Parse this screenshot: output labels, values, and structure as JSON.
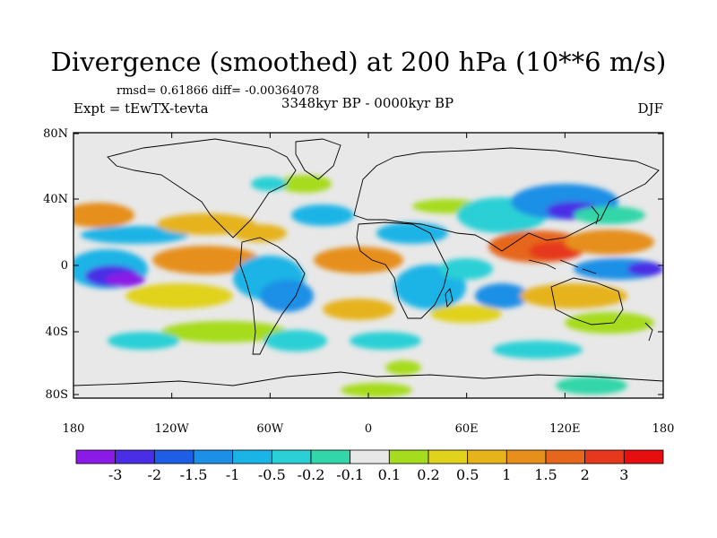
{
  "title": "Divergence (smoothed) at 200 hPa (10**6 m/s)",
  "stats": "rmsd= 0.61866 diff= -0.00364078",
  "period": "3348kyr BP - 0000kyr BP",
  "experiment": "Expt = tEwTX-tevta",
  "season": "DJF",
  "axes": {
    "x_ticks": [
      "180",
      "120W",
      "60W",
      "0",
      "60E",
      "120E",
      "180"
    ],
    "y_ticks": [
      "80N",
      "40N",
      "0",
      "40S",
      "80S"
    ]
  },
  "colorbar": {
    "colors": [
      "#8b1ae6",
      "#4a2ee6",
      "#1e5ee6",
      "#1c8fe6",
      "#1ab4e6",
      "#2ad0d6",
      "#33d6a8",
      "#e8e8e8",
      "#a6dc1e",
      "#e1d21c",
      "#e6b31a",
      "#e68f1a",
      "#e6661c",
      "#e6381c",
      "#e60e0e"
    ],
    "labels": [
      "-3",
      "-2",
      "-1.5",
      "-1",
      "-0.5",
      "-0.2",
      "-0.1",
      "0.1",
      "0.2",
      "0.5",
      "1",
      "1.5",
      "2",
      "3"
    ]
  },
  "colors": {
    "background_field": "#e8e8e8",
    "coastline": "#000000"
  }
}
